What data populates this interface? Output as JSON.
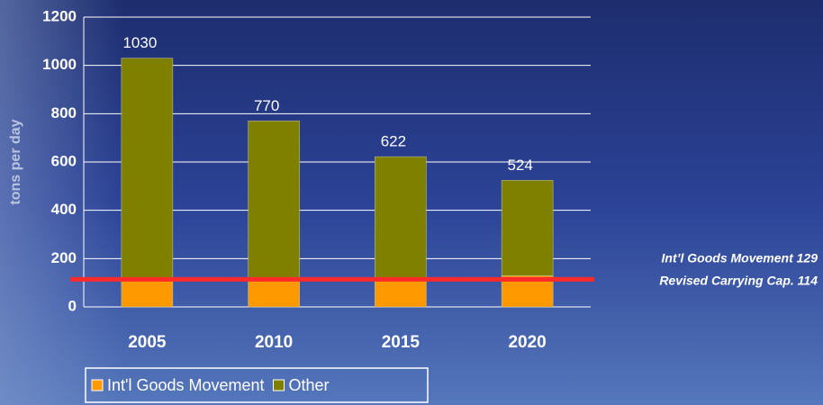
{
  "chart_data": {
    "type": "bar",
    "stacked": true,
    "y_label": "tons per day",
    "categories": [
      "2005",
      "2010",
      "2015",
      "2020"
    ],
    "series": [
      {
        "name": "Int'l Goods Movement",
        "color": "#ff9900",
        "values": [
          118,
          118,
          118,
          129
        ]
      },
      {
        "name": "Other",
        "color": "#808000",
        "values": [
          912,
          652,
          504,
          395
        ]
      }
    ],
    "totals": [
      1030,
      770,
      622,
      524
    ],
    "ylim": [
      0,
      1200
    ],
    "yticks": [
      0,
      200,
      400,
      600,
      800,
      1000,
      1200
    ],
    "grid": true,
    "reference_line": {
      "value": 114,
      "color": "#ff2a2a"
    },
    "annotations": [
      "Int’l Goods Movement  129",
      "Revised  Carrying Cap.  114"
    ],
    "legend": "bottom-left"
  }
}
